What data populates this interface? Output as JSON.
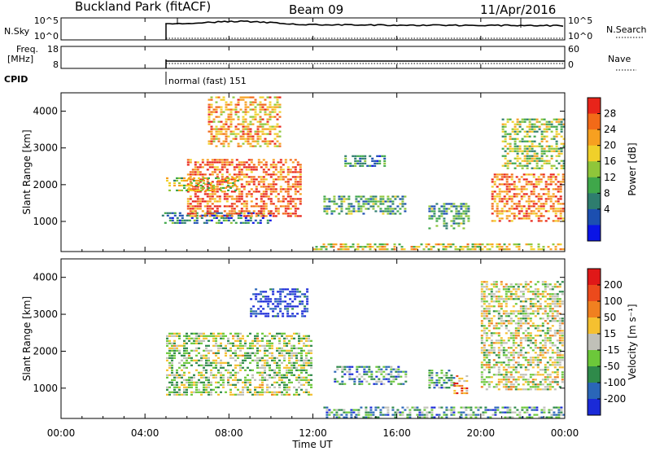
{
  "header": {
    "station": "Buckland Park (fitACF)",
    "beam": "Beam 09",
    "date": "11/Apr/2016"
  },
  "status_panels": {
    "nsky_label": "N.Sky",
    "nsky_ticks": [
      "10^5",
      "10^0"
    ],
    "nsearch_label": "N.Search",
    "nsearch_ticks": [
      "10^5",
      "10^0"
    ],
    "freq_label_1": "Freq.",
    "freq_label_2": "[MHz]",
    "freq_ticks": [
      "18",
      "8"
    ],
    "nave_label": "Nave",
    "nave_ticks": [
      "60",
      "0"
    ],
    "cpid_label": "CPID",
    "cpid_text": "normal (fast) 151"
  },
  "chart_data": [
    {
      "type": "heatmap",
      "name": "power",
      "ylabel": "Slant Range [km]",
      "ylim": [
        180,
        4500
      ],
      "y_ticks": [
        "4000",
        "3000",
        "2000",
        "1000"
      ],
      "colorbar_label": "Power [dB]",
      "colorbar_ticks": [
        "28",
        "24",
        "20",
        "16",
        "12",
        "8",
        "4"
      ],
      "colors": [
        "#0a14e6",
        "#1c4fb0",
        "#2e7d6e",
        "#3fa74a",
        "#8fc63a",
        "#f0d02a",
        "#f7a020",
        "#f26a18",
        "#e8241a"
      ],
      "features": [
        {
          "t0": 4.8,
          "t1": 10.0,
          "r0": 900,
          "r1": 1250,
          "level": 0.25
        },
        {
          "t0": 6.0,
          "t1": 11.5,
          "r0": 1100,
          "r1": 2700,
          "level": 0.85
        },
        {
          "t0": 5.0,
          "t1": 8.5,
          "r0": 1800,
          "r1": 2200,
          "level": 0.55
        },
        {
          "t0": 7.0,
          "t1": 10.5,
          "r0": 3000,
          "r1": 4400,
          "level": 0.7
        },
        {
          "t0": 12.5,
          "t1": 16.5,
          "r0": 1200,
          "r1": 1700,
          "level": 0.35
        },
        {
          "t0": 13.5,
          "t1": 15.5,
          "r0": 2500,
          "r1": 2800,
          "level": 0.3
        },
        {
          "t0": 17.5,
          "t1": 19.5,
          "r0": 800,
          "r1": 1500,
          "level": 0.35
        },
        {
          "t0": 20.5,
          "t1": 24.0,
          "r0": 1000,
          "r1": 2300,
          "level": 0.8
        },
        {
          "t0": 21.0,
          "t1": 24.0,
          "r0": 2400,
          "r1": 3800,
          "level": 0.5
        },
        {
          "t0": 12.0,
          "t1": 24.0,
          "r0": 190,
          "r1": 400,
          "level": 0.6
        }
      ]
    },
    {
      "type": "heatmap",
      "name": "velocity",
      "ylabel": "Slant Range [km]",
      "ylim": [
        180,
        4500
      ],
      "y_ticks": [
        "4000",
        "3000",
        "2000",
        "1000"
      ],
      "xlabel": "Time UT",
      "x_ticks": [
        "00:00",
        "04:00",
        "08:00",
        "12:00",
        "16:00",
        "20:00",
        "00:00"
      ],
      "colorbar_label": "Velocity [m s⁻¹]",
      "colorbar_ticks": [
        "200",
        "100",
        "50",
        "15",
        "-15",
        "-50",
        "-100",
        "-200"
      ],
      "colors": [
        "#1a2ad8",
        "#2a66b8",
        "#2f8a4a",
        "#6cc83a",
        "#c0c0b8",
        "#f5c030",
        "#f08020",
        "#ec4a1c",
        "#e01818"
      ],
      "features": [
        {
          "t0": 5.0,
          "t1": 12.0,
          "r0": 800,
          "r1": 2500,
          "level": 0.45
        },
        {
          "t0": 9.0,
          "t1": 11.8,
          "r0": 2900,
          "r1": 3700,
          "level": 0.05
        },
        {
          "t0": 13.0,
          "t1": 16.5,
          "r0": 1100,
          "r1": 1600,
          "level": 0.3
        },
        {
          "t0": 17.5,
          "t1": 18.8,
          "r0": 1000,
          "r1": 1500,
          "level": 0.3
        },
        {
          "t0": 18.7,
          "t1": 19.4,
          "r0": 850,
          "r1": 1350,
          "level": 0.7
        },
        {
          "t0": 20.0,
          "t1": 24.0,
          "r0": 900,
          "r1": 3900,
          "level": 0.5
        },
        {
          "t0": 12.5,
          "t1": 24.0,
          "r0": 190,
          "r1": 500,
          "level": 0.3
        }
      ]
    }
  ]
}
